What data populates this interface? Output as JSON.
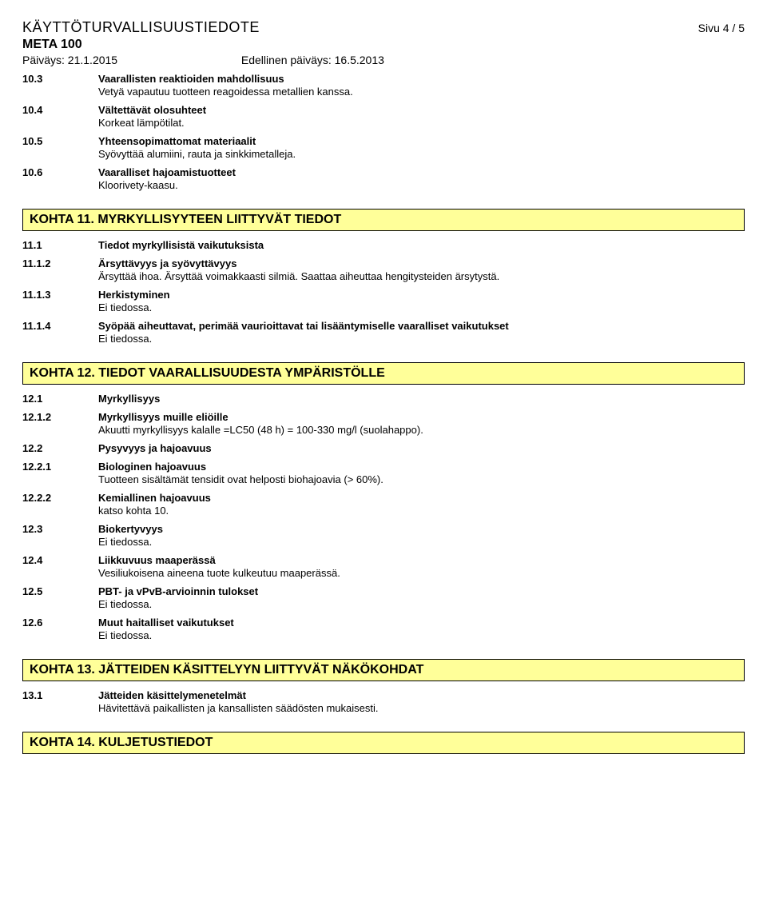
{
  "header": {
    "doc_title": "KÄYTTÖTURVALLISUUSTIEDOTE",
    "page_label": "Sivu  4 / 5",
    "product": "META 100",
    "date_current_label": "Päiväys: 21.1.2015",
    "date_prev_label": "Edellinen päiväys: 16.5.2013"
  },
  "sections10": [
    {
      "num": "10.3",
      "heading": "Vaarallisten reaktioiden mahdollisuus",
      "text": "Vetyä vapautuu tuotteen reagoidessa metallien kanssa."
    },
    {
      "num": "10.4",
      "heading": "Vältettävät olosuhteet",
      "text": "Korkeat lämpötilat."
    },
    {
      "num": "10.5",
      "heading": "Yhteensopimattomat materiaalit",
      "text": "Syövyttää alumiini, rauta ja sinkkimetalleja."
    },
    {
      "num": "10.6",
      "heading": "Vaaralliset hajoamistuotteet",
      "text": "Kloorivety-kaasu."
    }
  ],
  "kohta11": {
    "title": "KOHTA 11. MYRKYLLISYYTEEN LIITTYVÄT TIEDOT"
  },
  "sections11": [
    {
      "num": "11.1",
      "heading": "Tiedot myrkyllisistä vaikutuksista",
      "text": ""
    },
    {
      "num": "11.1.2",
      "heading": "Ärsyttävyys ja syövyttävyys",
      "text": "Ärsyttää ihoa. Ärsyttää voimakkaasti silmiä. Saattaa aiheuttaa hengitysteiden ärsytystä."
    },
    {
      "num": "11.1.3",
      "heading": "Herkistyminen",
      "text": "Ei tiedossa."
    },
    {
      "num": "11.1.4",
      "heading": "Syöpää aiheuttavat, perimää vaurioittavat tai lisääntymiselle vaaralliset vaikutukset",
      "text": "Ei tiedossa."
    }
  ],
  "kohta12": {
    "title": "KOHTA 12. TIEDOT VAARALLISUUDESTA YMPÄRISTÖLLE"
  },
  "sections12": [
    {
      "num": "12.1",
      "heading": "Myrkyllisyys",
      "text": ""
    },
    {
      "num": "12.1.2",
      "heading": "Myrkyllisyys muille eliöille",
      "text": "Akuutti myrkyllisyys kalalle =LC50 (48 h) = 100-330 mg/l (suolahappo)."
    },
    {
      "num": "12.2",
      "heading": "Pysyvyys ja hajoavuus",
      "text": ""
    },
    {
      "num": "12.2.1",
      "heading": "Biologinen hajoavuus",
      "text": "Tuotteen sisältämät tensidit ovat helposti biohajoavia (> 60%)."
    },
    {
      "num": "12.2.2",
      "heading": "Kemiallinen hajoavuus",
      "text": "katso kohta 10."
    },
    {
      "num": "12.3",
      "heading": "Biokertyvyys",
      "text": "Ei tiedossa."
    },
    {
      "num": "12.4",
      "heading": "Liikkuvuus maaperässä",
      "text": "Vesiliukoisena aineena tuote kulkeutuu maaperässä."
    },
    {
      "num": "12.5",
      "heading": "PBT- ja vPvB-arvioinnin tulokset",
      "text": "Ei tiedossa."
    },
    {
      "num": "12.6",
      "heading": "Muut haitalliset vaikutukset",
      "text": "Ei tiedossa."
    }
  ],
  "kohta13": {
    "title": "KOHTA 13. JÄTTEIDEN KÄSITTELYYN LIITTYVÄT NÄKÖKOHDAT"
  },
  "sections13": [
    {
      "num": "13.1",
      "heading": "Jätteiden käsittelymenetelmät",
      "text": "Hävitettävä paikallisten ja kansallisten säädösten mukaisesti."
    }
  ],
  "kohta14": {
    "title": "KOHTA 14. KULJETUSTIEDOT"
  }
}
